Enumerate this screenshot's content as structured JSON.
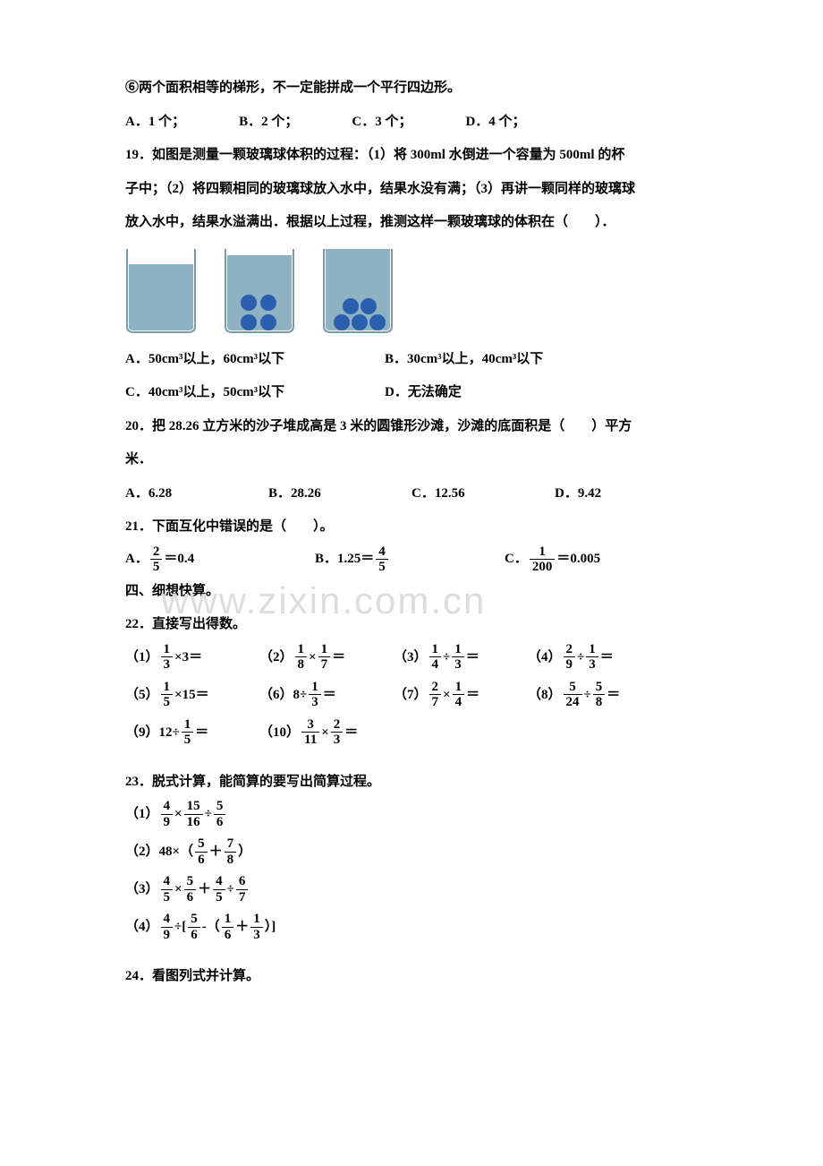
{
  "q_circle6": "⑥两个面积相等的梯形，不一定能拼成一个平行四边形。",
  "opt_row1": {
    "a": "A．1 个；",
    "b": "B．2 个；",
    "c": "C．3 个；",
    "d": "D．4 个；"
  },
  "q19_l1": "19．如图是测量一颗玻璃球体积的过程：（1）将 300ml 水倒进一个容量为 500ml 的杯",
  "q19_l2": "子中；（2）将四颗相同的玻璃球放入水中，结果水没有满；（3）再讲一颗同样的玻璃球",
  "q19_l3": "放入水中，结果水溢满出．根据以上过程，推测这样一颗玻璃球的体积在（　　）．",
  "beaker": {
    "bg": "#8fb2c2",
    "ball": "#2a5fb0",
    "border": "#7a9aa8",
    "radii": "0 0 10px 10px",
    "water1": 78,
    "water2": 88,
    "water3": 95,
    "ball_r": 9
  },
  "q19_opts": {
    "a": "A．50cm³以上，60cm³以下",
    "b": "B．30cm³以上，40cm³以下",
    "c": "C．40cm³以上，50cm³以下",
    "d": "D．无法确定"
  },
  "q20_l1": "20．把 28.26 立方米的沙子堆成高是 3 米的圆锥形沙滩，沙滩的底面积是（　　）平方",
  "q20_l2": "米．",
  "q20_opts": {
    "a": "A．6.28",
    "b": "B．28.26",
    "c": "C．12.56",
    "d": "D．9.42"
  },
  "q21": "21．下面互化中错误的是（　　）。",
  "q21_opts": {
    "a_pre": "A．",
    "a_num": "2",
    "a_den": "5",
    "a_post": "＝0.4",
    "b_pre": "B．1.25＝",
    "b_num": "4",
    "b_den": "5",
    "c_pre": "C．",
    "c_num": "1",
    "c_den": "200",
    "c_post": "＝0.005"
  },
  "sec4": "四、细想快算。",
  "q22": "22．直接写出得数。",
  "q22_items": [
    {
      "label": "（1）",
      "a_num": "1",
      "a_den": "3",
      "op": "×",
      "b": "3",
      "eq": "＝"
    },
    {
      "label": "（2）",
      "a_num": "1",
      "a_den": "8",
      "op": "×",
      "b_num": "1",
      "b_den": "7",
      "eq": "＝"
    },
    {
      "label": "（3）",
      "a_num": "1",
      "a_den": "4",
      "op": "÷",
      "b_num": "1",
      "b_den": "3",
      "eq": "＝"
    },
    {
      "label": "（4）",
      "a_num": "2",
      "a_den": "9",
      "op": "÷",
      "b_num": "1",
      "b_den": "3",
      "eq": "＝"
    },
    {
      "label": "（5）",
      "a_num": "1",
      "a_den": "5",
      "op": "×",
      "b": "15",
      "eq": "＝"
    },
    {
      "label": "（6）",
      "a": "8",
      "op": "÷",
      "b_num": "1",
      "b_den": "3",
      "eq": "＝"
    },
    {
      "label": "（7）",
      "a_num": "2",
      "a_den": "7",
      "op": "×",
      "b_num": "1",
      "b_den": "4",
      "eq": "＝"
    },
    {
      "label": "（8）",
      "a_num": "5",
      "a_den": "24",
      "op": "÷",
      "b_num": "5",
      "b_den": "8",
      "eq": "＝"
    },
    {
      "label": "（9）",
      "a": "12",
      "op": "÷",
      "b_num": "1",
      "b_den": "5",
      "eq": "＝"
    },
    {
      "label": "（10）",
      "a_num": "3",
      "a_den": "11",
      "op": "×",
      "b_num": "2",
      "b_den": "3",
      "eq": "＝"
    }
  ],
  "q23": "23．脱式计算，能简算的要写出简算过程。",
  "q23_items": [
    {
      "label": "（1）",
      "parts": [
        {
          "n": "4",
          "d": "9"
        },
        {
          "t": "×"
        },
        {
          "n": "15",
          "d": "16"
        },
        {
          "t": "÷"
        },
        {
          "n": "5",
          "d": "6"
        }
      ]
    },
    {
      "label": "（2）",
      "parts": [
        {
          "t": "48×（"
        },
        {
          "n": "5",
          "d": "6"
        },
        {
          "t": "＋"
        },
        {
          "n": "7",
          "d": "8"
        },
        {
          "t": "）"
        }
      ]
    },
    {
      "label": "（3）",
      "parts": [
        {
          "n": "4",
          "d": "5"
        },
        {
          "t": "×"
        },
        {
          "n": "5",
          "d": "6"
        },
        {
          "t": "＋"
        },
        {
          "n": "4",
          "d": "5"
        },
        {
          "t": "÷"
        },
        {
          "n": "6",
          "d": "7"
        }
      ]
    },
    {
      "label": "（4）",
      "parts": [
        {
          "n": "4",
          "d": "9"
        },
        {
          "t": "÷["
        },
        {
          "n": "5",
          "d": "6"
        },
        {
          "t": "-（"
        },
        {
          "n": "1",
          "d": "6"
        },
        {
          "t": "＋"
        },
        {
          "n": "1",
          "d": "3"
        },
        {
          "t": "）]"
        }
      ]
    }
  ],
  "q24": "24．看图列式并计算。",
  "watermark": "www.zixin.com.cn"
}
